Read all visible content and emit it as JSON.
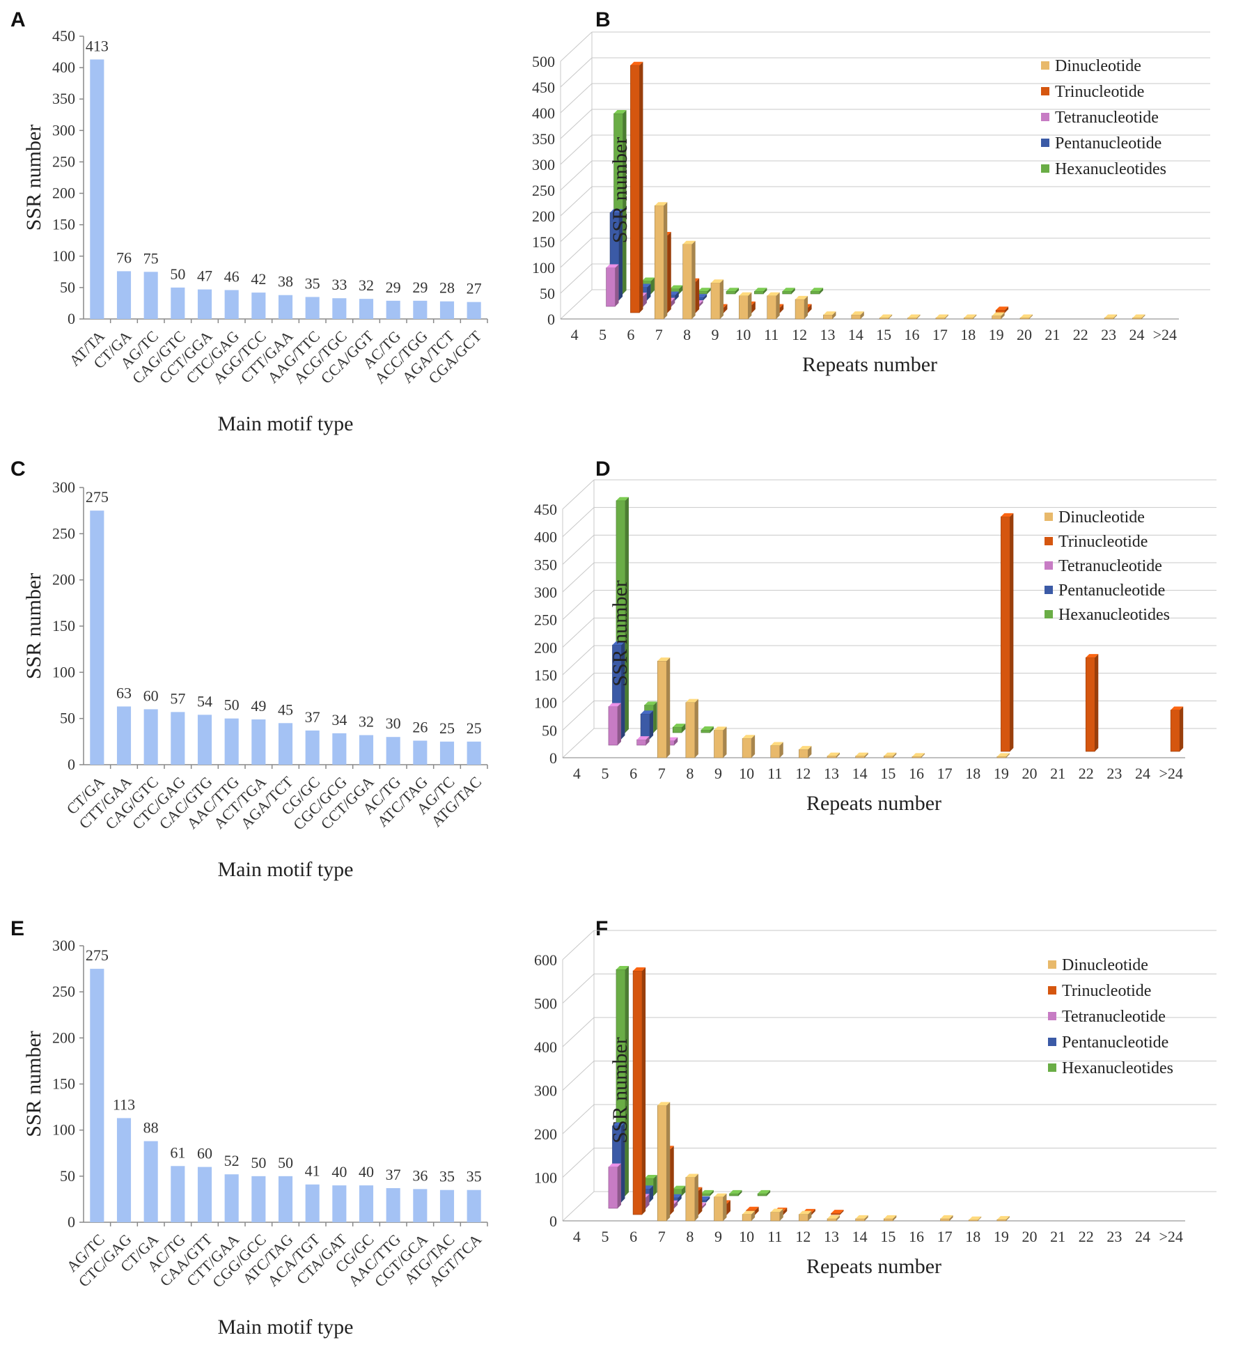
{
  "colors": {
    "bar": "#a4c2f4",
    "Dinucleotide": "#e8b96b",
    "Trinucleotide": "#d5560f",
    "Tetranucleotide": "#c77cc4",
    "Pentanucleotide": "#3b5aa6",
    "Hexanucleotides": "#6aad46"
  },
  "chart_data": [
    {
      "panel": "A",
      "type": "bar",
      "title": "",
      "xlabel": "Main motif type",
      "ylabel": "SSR number",
      "ylim": [
        0,
        450
      ],
      "yticks": [
        0,
        50,
        100,
        150,
        200,
        250,
        300,
        350,
        400,
        450
      ],
      "categories": [
        "AT/TA",
        "CT/GA",
        "AG/TC",
        "CAG/GTC",
        "CCT/GGA",
        "CTC/GAG",
        "AGG/TCC",
        "CTT/GAA",
        "AAG/TTC",
        "ACG/TGC",
        "CCA/GGT",
        "AC/TG",
        "ACC/TGG",
        "AGA/TCT",
        "CGA/GCT"
      ],
      "values": [
        413,
        76,
        75,
        50,
        47,
        46,
        42,
        38,
        35,
        33,
        32,
        29,
        29,
        28,
        27
      ]
    },
    {
      "panel": "B",
      "type": "bar",
      "xlabel": "Repeats number",
      "ylabel": "SSR number",
      "ylim": [
        0,
        500
      ],
      "yticks": [
        0,
        50,
        100,
        150,
        200,
        250,
        300,
        350,
        400,
        450,
        500
      ],
      "categories": [
        "4",
        "5",
        "6",
        "7",
        "8",
        "9",
        "10",
        "11",
        "12",
        "13",
        "14",
        "15",
        "16",
        "17",
        "18",
        "19",
        "20",
        "21",
        "22",
        "23",
        "24",
        ">24"
      ],
      "series": [
        {
          "name": "Dinucleotide",
          "values": [
            0,
            0,
            0,
            220,
            145,
            70,
            45,
            45,
            38,
            8,
            8,
            2,
            2,
            2,
            2,
            6,
            2,
            0,
            0,
            2,
            2,
            0
          ]
        },
        {
          "name": "Trinucleotide",
          "values": [
            0,
            0,
            480,
            150,
            60,
            10,
            15,
            10,
            10,
            0,
            0,
            0,
            0,
            0,
            0,
            5,
            0,
            0,
            0,
            0,
            0,
            0
          ]
        },
        {
          "name": "Tetranucleotide",
          "values": [
            0,
            75,
            20,
            10,
            5,
            0,
            0,
            0,
            0,
            0,
            0,
            0,
            0,
            0,
            0,
            0,
            0,
            0,
            0,
            0,
            0,
            0
          ]
        },
        {
          "name": "Pentanucleotide",
          "values": [
            0,
            170,
            25,
            10,
            5,
            0,
            0,
            0,
            0,
            0,
            0,
            0,
            0,
            0,
            0,
            0,
            0,
            0,
            0,
            0,
            0,
            0
          ]
        },
        {
          "name": "Hexanucleotides",
          "values": [
            0,
            350,
            25,
            10,
            5,
            5,
            5,
            5,
            5,
            0,
            0,
            0,
            0,
            0,
            0,
            0,
            0,
            0,
            0,
            0,
            0,
            0
          ]
        }
      ]
    },
    {
      "panel": "C",
      "type": "bar",
      "xlabel": "Main motif type",
      "ylabel": "SSR number",
      "ylim": [
        0,
        300
      ],
      "yticks": [
        0,
        50,
        100,
        150,
        200,
        250,
        300
      ],
      "categories": [
        "CT/GA",
        "CTT/GAA",
        "CAG/GTC",
        "CTC/GAG",
        "CAC/GTG",
        "AAC/TTG",
        "ACT/TGA",
        "AGA/TCT",
        "CG/GC",
        "CGC/GCG",
        "CCT/GGA",
        "AC/TG",
        "ATC/TAG",
        "AG/TC",
        "ATG/TAC"
      ],
      "values": [
        275,
        63,
        60,
        57,
        54,
        50,
        49,
        45,
        37,
        34,
        32,
        30,
        26,
        25,
        25
      ]
    },
    {
      "panel": "D",
      "type": "bar",
      "xlabel": "Repeats number",
      "ylabel": "SSR number",
      "ylim": [
        0,
        450
      ],
      "yticks": [
        0,
        50,
        100,
        150,
        200,
        250,
        300,
        350,
        400,
        450
      ],
      "categories": [
        "4",
        "5",
        "6",
        "7",
        "8",
        "9",
        "10",
        "11",
        "12",
        "13",
        "14",
        "15",
        "16",
        "17",
        "18",
        "19",
        "20",
        "21",
        "22",
        "23",
        "24",
        ">24"
      ],
      "series": [
        {
          "name": "Dinucleotide",
          "values": [
            0,
            0,
            0,
            175,
            100,
            50,
            35,
            22,
            15,
            3,
            3,
            3,
            2,
            0,
            0,
            2,
            0,
            0,
            0,
            0,
            0,
            0
          ]
        },
        {
          "name": "Trinucleotide",
          "values": [
            0,
            0,
            0,
            0,
            0,
            0,
            0,
            0,
            0,
            0,
            0,
            0,
            0,
            0,
            0,
            425,
            0,
            0,
            170,
            0,
            0,
            75
          ]
        },
        {
          "name": "Tetranucleotide",
          "values": [
            0,
            70,
            10,
            8,
            0,
            0,
            0,
            0,
            0,
            0,
            0,
            0,
            0,
            0,
            0,
            0,
            0,
            0,
            0,
            0,
            0,
            0
          ]
        },
        {
          "name": "Pentanucleotide",
          "values": [
            0,
            170,
            45,
            0,
            0,
            0,
            0,
            0,
            0,
            0,
            0,
            0,
            0,
            0,
            0,
            0,
            0,
            0,
            0,
            0,
            0,
            0
          ]
        },
        {
          "name": "Hexanucleotides",
          "values": [
            0,
            420,
            50,
            10,
            5,
            0,
            0,
            0,
            0,
            0,
            0,
            0,
            0,
            0,
            0,
            0,
            0,
            0,
            0,
            0,
            0,
            0
          ]
        }
      ]
    },
    {
      "panel": "E",
      "type": "bar",
      "xlabel": "Main motif type",
      "ylabel": "SSR number",
      "ylim": [
        0,
        300
      ],
      "yticks": [
        0,
        50,
        100,
        150,
        200,
        250,
        300
      ],
      "categories": [
        "AG/TC",
        "CTC/GAG",
        "CT/GA",
        "AC/TG",
        "CAA/GTT",
        "CTT/GAA",
        "CGG/GCC",
        "ATC/TAG",
        "ACA/TGT",
        "CTA/GAT",
        "CG/GC",
        "AAC/TTG",
        "CGT/GCA",
        "ATG/TAC",
        "AGT/TCA"
      ],
      "values": [
        275,
        113,
        88,
        61,
        60,
        52,
        50,
        50,
        41,
        40,
        40,
        37,
        36,
        35,
        35
      ]
    },
    {
      "panel": "F",
      "type": "bar",
      "xlabel": "Repeats number",
      "ylabel": "SSR number",
      "ylim": [
        0,
        600
      ],
      "yticks": [
        0,
        100,
        200,
        300,
        400,
        500,
        600
      ],
      "categories": [
        "4",
        "5",
        "6",
        "7",
        "8",
        "9",
        "10",
        "11",
        "12",
        "13",
        "14",
        "15",
        "16",
        "17",
        "18",
        "19",
        "20",
        "21",
        "22",
        "23",
        "24",
        ">24"
      ],
      "series": [
        {
          "name": "Dinucleotide",
          "values": [
            0,
            0,
            0,
            265,
            100,
            55,
            15,
            20,
            15,
            5,
            5,
            5,
            0,
            5,
            2,
            3,
            0,
            0,
            0,
            0,
            0,
            0
          ]
        },
        {
          "name": "Trinucleotide",
          "values": [
            0,
            0,
            560,
            150,
            55,
            25,
            10,
            8,
            5,
            3,
            0,
            0,
            0,
            0,
            0,
            0,
            0,
            0,
            0,
            0,
            0,
            0
          ]
        },
        {
          "name": "Tetranucleotide",
          "values": [
            0,
            95,
            25,
            10,
            5,
            0,
            0,
            0,
            0,
            0,
            0,
            0,
            0,
            0,
            0,
            0,
            0,
            0,
            0,
            0,
            0,
            0
          ]
        },
        {
          "name": "Pentanucleotide",
          "values": [
            0,
            175,
            30,
            10,
            5,
            0,
            0,
            0,
            0,
            0,
            0,
            0,
            0,
            0,
            0,
            0,
            0,
            0,
            0,
            0,
            0,
            0
          ]
        },
        {
          "name": "Hexanucleotides",
          "values": [
            0,
            520,
            40,
            15,
            5,
            5,
            5,
            0,
            0,
            0,
            0,
            0,
            0,
            0,
            0,
            0,
            0,
            0,
            0,
            0,
            0,
            0
          ]
        }
      ]
    }
  ]
}
